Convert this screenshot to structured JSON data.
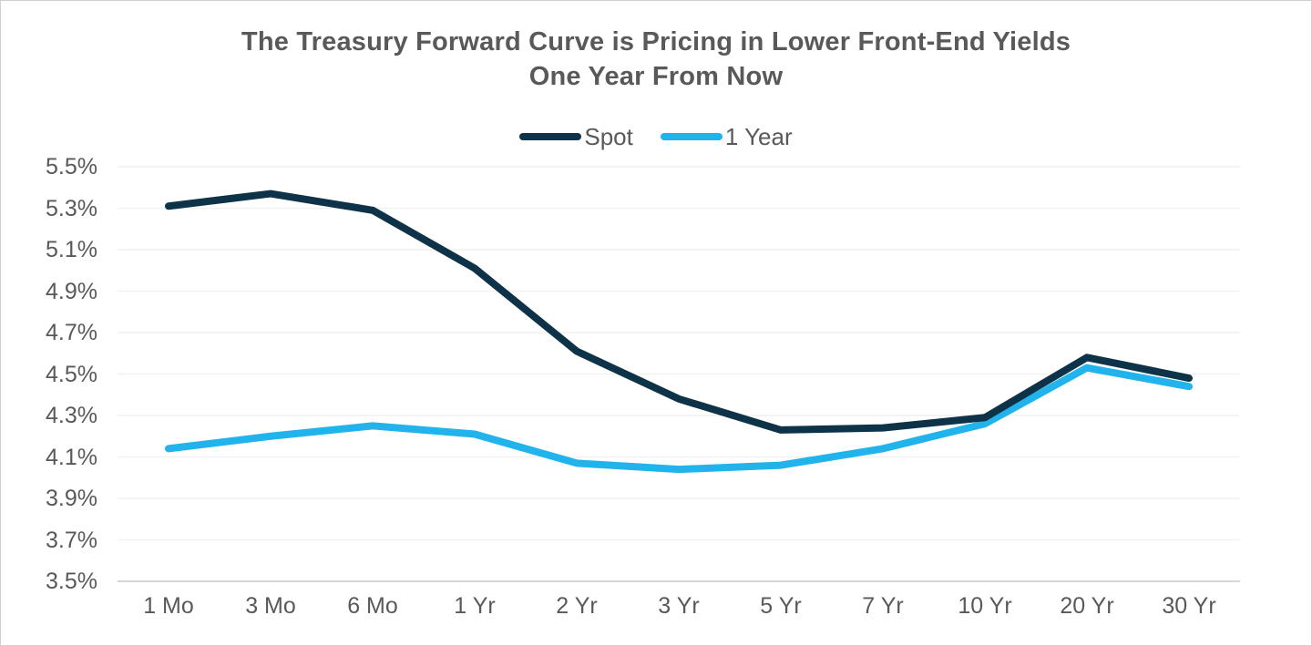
{
  "chart_data": {
    "type": "line",
    "title": "The Treasury Forward Curve is Pricing in Lower Front-End Yields One Year From Now",
    "title_lines": [
      "The Treasury Forward Curve is Pricing in Lower Front-End Yields",
      "One Year From Now"
    ],
    "categories": [
      "1 Mo",
      "3 Mo",
      "6 Mo",
      "1 Yr",
      "2 Yr",
      "3 Yr",
      "5 Yr",
      "7 Yr",
      "10 Yr",
      "20 Yr",
      "30 Yr"
    ],
    "series": [
      {
        "name": "Spot",
        "color": "#0e3349",
        "values": [
          5.31,
          5.37,
          5.29,
          5.01,
          4.61,
          4.38,
          4.23,
          4.24,
          4.29,
          4.58,
          4.48
        ]
      },
      {
        "name": "1 Year",
        "color": "#20b3ec",
        "values": [
          4.14,
          4.2,
          4.25,
          4.21,
          4.07,
          4.04,
          4.06,
          4.14,
          4.26,
          4.53,
          4.44
        ]
      }
    ],
    "y_ticks": [
      "5.5%",
      "5.3%",
      "5.1%",
      "4.9%",
      "4.7%",
      "4.5%",
      "4.3%",
      "4.1%",
      "3.9%",
      "3.7%",
      "3.5%"
    ],
    "ylim": [
      3.5,
      5.5
    ],
    "xlabel": "",
    "ylabel": "",
    "grid": true,
    "legend_position": "top-center"
  },
  "colors": {
    "title_text": "#595959",
    "axis_text": "#595959",
    "gridline": "#f1f1f1",
    "axis_line": "#d6d6d6",
    "background": "#ffffff",
    "frame_border": "#d0d0d0"
  }
}
